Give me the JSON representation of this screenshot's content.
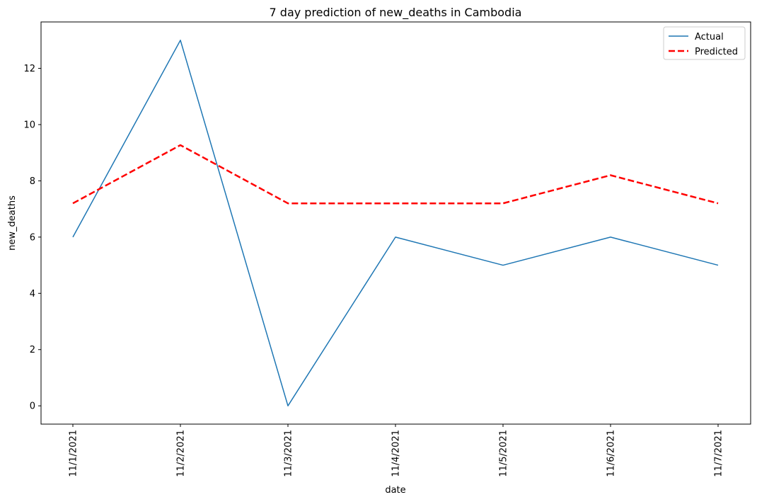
{
  "chart_data": {
    "type": "line",
    "title": "7 day prediction of new_deaths in Cambodia",
    "xlabel": "date",
    "ylabel": "new_deaths",
    "categories": [
      "11/1/2021",
      "11/2/2021",
      "11/3/2021",
      "11/4/2021",
      "11/5/2021",
      "11/6/2021",
      "11/7/2021"
    ],
    "series": [
      {
        "name": "Actual",
        "values": [
          6,
          13,
          0,
          6,
          5,
          6,
          5
        ],
        "color": "#1f77b4",
        "style": "solid"
      },
      {
        "name": "Predicted",
        "values": [
          7.2,
          9.27,
          7.2,
          7.2,
          7.2,
          8.2,
          7.2
        ],
        "color": "#ff0000",
        "style": "dashed"
      }
    ],
    "ylim": [
      -0.65,
      13.65
    ],
    "yticks": [
      "0",
      "2",
      "4",
      "6",
      "8",
      "10",
      "12"
    ],
    "legend": "upper-right",
    "grid": false
  }
}
